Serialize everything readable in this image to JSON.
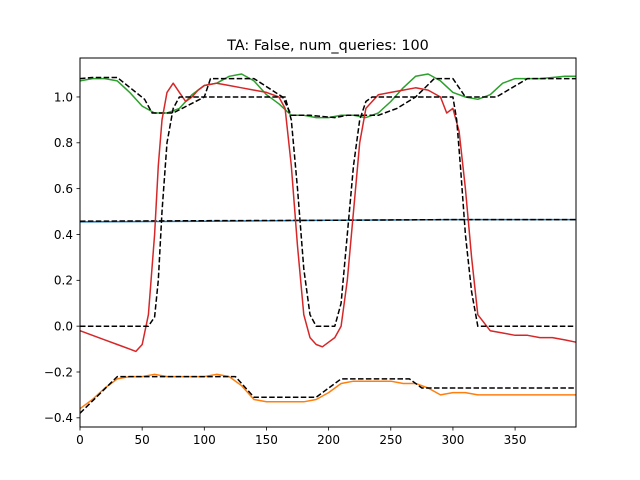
{
  "chart_data": {
    "type": "line",
    "title": "TA: False, num_queries: 100",
    "xlabel": "",
    "ylabel": "",
    "xlim": [
      0,
      399
    ],
    "ylim": [
      -0.44,
      1.17
    ],
    "xticks": [
      0,
      50,
      100,
      150,
      200,
      250,
      300,
      350
    ],
    "yticks": [
      -0.4,
      -0.2,
      0.0,
      0.2,
      0.4,
      0.6,
      0.8,
      1.0
    ],
    "xtick_labels": [
      "0",
      "50",
      "100",
      "150",
      "200",
      "250",
      "300",
      "350"
    ],
    "ytick_labels": [
      "−0.4",
      "−0.2",
      "0.0",
      "0.2",
      "0.4",
      "0.6",
      "0.8",
      "1.0"
    ],
    "grid": false,
    "series": [
      {
        "color": "#1f77b4",
        "style": "solid",
        "x": [
          0,
          100,
          200,
          300,
          399
        ],
        "y": [
          0.455,
          0.458,
          0.462,
          0.465,
          0.465
        ]
      },
      {
        "color": "#000000",
        "style": "dashed",
        "x": [
          0,
          100,
          200,
          300,
          399
        ],
        "y": [
          0.458,
          0.46,
          0.462,
          0.465,
          0.465
        ]
      },
      {
        "color": "#2ca02c",
        "style": "solid",
        "x": [
          0,
          10,
          20,
          30,
          40,
          50,
          60,
          70,
          80,
          90,
          100,
          110,
          120,
          130,
          140,
          150,
          160,
          170,
          180,
          190,
          200,
          210,
          220,
          230,
          240,
          250,
          260,
          270,
          280,
          290,
          300,
          310,
          320,
          330,
          340,
          350,
          360,
          370,
          380,
          390,
          399
        ],
        "y": [
          1.07,
          1.08,
          1.08,
          1.07,
          1.02,
          0.96,
          0.93,
          0.93,
          0.95,
          1.01,
          1.05,
          1.06,
          1.09,
          1.1,
          1.07,
          1.01,
          0.97,
          0.92,
          0.92,
          0.91,
          0.91,
          0.92,
          0.92,
          0.91,
          0.93,
          0.98,
          1.04,
          1.09,
          1.1,
          1.07,
          1.02,
          1.0,
          0.99,
          1.01,
          1.06,
          1.08,
          1.08,
          1.08,
          1.085,
          1.09,
          1.09
        ]
      },
      {
        "color": "#000000",
        "style": "dashed",
        "x": [
          0,
          10,
          30,
          52,
          58,
          75,
          100,
          105,
          140,
          163,
          170,
          185,
          205,
          215,
          240,
          255,
          270,
          285,
          300,
          310,
          335,
          360,
          399
        ],
        "y": [
          1.08,
          1.085,
          1.085,
          0.99,
          0.93,
          0.93,
          1.0,
          1.08,
          1.08,
          1.0,
          0.92,
          0.92,
          0.91,
          0.92,
          0.92,
          0.95,
          1.0,
          1.08,
          1.08,
          1.0,
          1.0,
          1.08,
          1.08
        ]
      },
      {
        "color": "#d62728",
        "style": "solid",
        "x": [
          0,
          10,
          20,
          30,
          40,
          45,
          50,
          55,
          60,
          63,
          66,
          70,
          75,
          80,
          85,
          90,
          95,
          100,
          110,
          120,
          130,
          140,
          150,
          160,
          165,
          170,
          175,
          180,
          185,
          190,
          195,
          200,
          205,
          210,
          215,
          220,
          225,
          230,
          240,
          250,
          260,
          270,
          280,
          290,
          295,
          300,
          305,
          310,
          315,
          320,
          330,
          340,
          350,
          360,
          370,
          380,
          390,
          399
        ],
        "y": [
          -0.02,
          -0.04,
          -0.06,
          -0.08,
          -0.1,
          -0.11,
          -0.08,
          0.05,
          0.4,
          0.7,
          0.9,
          1.02,
          1.06,
          1.02,
          0.98,
          1.0,
          1.03,
          1.05,
          1.06,
          1.05,
          1.04,
          1.03,
          1.02,
          1.0,
          0.95,
          0.7,
          0.35,
          0.05,
          -0.05,
          -0.08,
          -0.09,
          -0.07,
          -0.05,
          0.0,
          0.2,
          0.5,
          0.8,
          0.95,
          1.01,
          1.02,
          1.03,
          1.04,
          1.03,
          1.0,
          0.93,
          0.95,
          0.85,
          0.6,
          0.3,
          0.05,
          -0.02,
          -0.03,
          -0.04,
          -0.04,
          -0.05,
          -0.05,
          -0.06,
          -0.07
        ]
      },
      {
        "color": "#000000",
        "style": "dashed",
        "x": [
          0,
          55,
          60,
          63,
          66,
          70,
          75,
          80,
          85,
          165,
          170,
          175,
          180,
          185,
          190,
          205,
          210,
          215,
          220,
          225,
          230,
          235,
          300,
          303,
          306,
          310,
          315,
          320,
          399
        ],
        "y": [
          0.0,
          0.0,
          0.04,
          0.2,
          0.5,
          0.8,
          0.95,
          1.0,
          1.0,
          1.0,
          0.9,
          0.6,
          0.25,
          0.05,
          0.0,
          0.0,
          0.1,
          0.4,
          0.7,
          0.9,
          0.98,
          1.0,
          1.0,
          0.9,
          0.7,
          0.4,
          0.15,
          0.0,
          0.0
        ]
      },
      {
        "color": "#ff7f0e",
        "style": "solid",
        "x": [
          0,
          10,
          20,
          30,
          40,
          50,
          60,
          70,
          80,
          90,
          100,
          110,
          120,
          130,
          140,
          150,
          160,
          170,
          180,
          190,
          200,
          210,
          220,
          230,
          240,
          250,
          260,
          270,
          280,
          290,
          300,
          310,
          320,
          330,
          340,
          350,
          360,
          370,
          380,
          390,
          399
        ],
        "y": [
          -0.36,
          -0.32,
          -0.27,
          -0.23,
          -0.22,
          -0.22,
          -0.21,
          -0.22,
          -0.22,
          -0.22,
          -0.22,
          -0.21,
          -0.22,
          -0.26,
          -0.32,
          -0.33,
          -0.33,
          -0.33,
          -0.33,
          -0.32,
          -0.29,
          -0.25,
          -0.24,
          -0.24,
          -0.24,
          -0.24,
          -0.25,
          -0.25,
          -0.27,
          -0.3,
          -0.29,
          -0.29,
          -0.3,
          -0.3,
          -0.3,
          -0.3,
          -0.3,
          -0.3,
          -0.3,
          -0.3,
          -0.3
        ]
      },
      {
        "color": "#000000",
        "style": "dashed",
        "x": [
          0,
          30,
          100,
          110,
          125,
          140,
          190,
          210,
          265,
          275,
          399
        ],
        "y": [
          -0.38,
          -0.22,
          -0.22,
          -0.22,
          -0.22,
          -0.31,
          -0.31,
          -0.23,
          -0.23,
          -0.27,
          -0.27
        ]
      }
    ]
  }
}
